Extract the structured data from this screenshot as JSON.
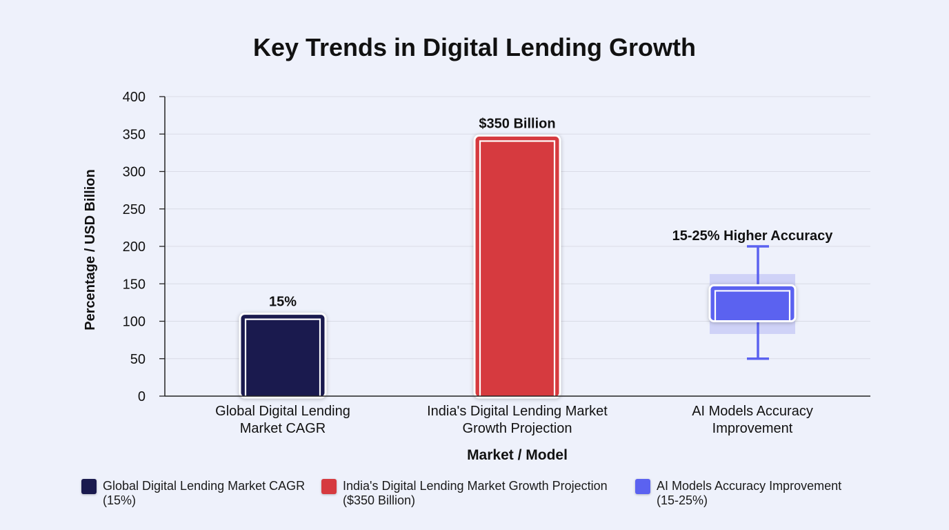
{
  "chart_data": {
    "type": "bar",
    "title": "Key Trends in Digital Lending Growth",
    "xlabel": "Market / Model",
    "ylabel": "Percentage / USD Billion",
    "ylim": [
      0,
      400
    ],
    "yticks": [
      0,
      50,
      100,
      150,
      200,
      250,
      300,
      350,
      400
    ],
    "grid": true,
    "categories": [
      "Global Digital Lending Market CAGR",
      "India's Digital Lending Market Growth Projection",
      "AI Models Accuracy Improvement"
    ],
    "category_lines": [
      [
        "Global Digital Lending",
        "Market CAGR"
      ],
      [
        "India's Digital Lending Market",
        "Growth Projection"
      ],
      [
        "AI Models Accuracy",
        "Improvement"
      ]
    ],
    "bars": [
      {
        "category_index": 0,
        "value": 110,
        "color": "#1a1a4e",
        "label": "15%"
      },
      {
        "category_index": 1,
        "value": 348,
        "color": "#d63a3f",
        "label": "$350 Billion"
      }
    ],
    "range_bar": {
      "category_index": 2,
      "color": "#5b62f0",
      "band_color": "#c9ccf6",
      "bar_low": 100,
      "bar_high": 148,
      "band_low": 83,
      "band_high": 163,
      "whisker_low": 50,
      "whisker_high": 200,
      "label": "15-25% Higher Accuracy"
    },
    "legend": {
      "placement": "bottom",
      "items": [
        {
          "lines": [
            "Global Digital Lending Market CAGR",
            "(15%)"
          ],
          "color": "#1a1a4e"
        },
        {
          "lines": [
            "India's Digital Lending Market Growth Projection",
            "($350 Billion)"
          ],
          "color": "#d63a3f"
        },
        {
          "lines": [
            "AI Models Accuracy Improvement",
            "(15-25%)"
          ],
          "color": "#5b62f0"
        }
      ]
    }
  }
}
